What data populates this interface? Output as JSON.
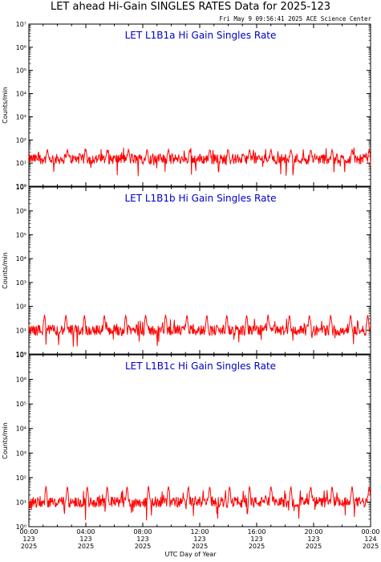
{
  "header": {
    "title": "LET ahead Hi-Gain SINGLES RATES Data for 2025-123",
    "timestamp": "Fri May  9 09:56:41 2025 ACE Science Center"
  },
  "colors": {
    "trace": "#ff0000",
    "panel_title": "#0000cc",
    "axis": "#000000"
  },
  "chart_data": [
    {
      "type": "line",
      "title": "LET L1B1a Hi Gain Singles Rate",
      "ylabel": "Counts/min",
      "yscale": "log",
      "ylim": [
        1,
        10000000
      ],
      "yticks": [
        "10⁰",
        "10¹",
        "10²",
        "10³",
        "10⁴",
        "10⁵",
        "10⁶",
        "10⁷"
      ],
      "xlim": [
        0,
        24
      ],
      "baseline": 15,
      "spike_hours": [
        1.3,
        2.7,
        4.0,
        5.5,
        7.0,
        8.3,
        9.8,
        11.3,
        12.7,
        14.0,
        15.5,
        17.0,
        18.4,
        19.8,
        21.3,
        22.7,
        23.9
      ],
      "spike_peak": 40
    },
    {
      "type": "line",
      "title": "LET L1B1b Hi Gain Singles Rate",
      "ylabel": "Counts/min",
      "yscale": "log",
      "ylim": [
        1,
        10000000
      ],
      "yticks": [
        "10⁰",
        "10¹",
        "10²",
        "10³",
        "10⁴",
        "10⁵",
        "10⁶",
        "10⁷"
      ],
      "xlim": [
        0,
        24
      ],
      "baseline": 10,
      "spike_hours": [
        1.1,
        2.6,
        3.9,
        5.3,
        6.8,
        8.2,
        9.6,
        11.1,
        12.5,
        13.9,
        15.3,
        16.8,
        18.3,
        19.7,
        21.2,
        22.6,
        23.8
      ],
      "spike_peak": 45
    },
    {
      "type": "line",
      "title": "LET L1B1c Hi Gain Singles Rate",
      "ylabel": "Counts/min",
      "yscale": "log",
      "ylim": [
        1,
        10000000
      ],
      "yticks": [
        "10⁰",
        "10¹",
        "10²",
        "10³",
        "10⁴",
        "10⁵",
        "10⁶",
        "10⁷"
      ],
      "xlim": [
        0,
        24
      ],
      "baseline": 10,
      "spike_hours": [
        1.2,
        2.7,
        4.1,
        5.5,
        6.9,
        8.4,
        9.8,
        11.2,
        12.7,
        14.1,
        15.5,
        17.0,
        18.4,
        19.8,
        21.3,
        22.7,
        23.9
      ],
      "spike_peak": 45
    }
  ],
  "xaxis": {
    "label": "UTC Day of Year",
    "ticks": [
      {
        "hour": 0,
        "time": "00:00",
        "doy": "123",
        "year": "2025"
      },
      {
        "hour": 4,
        "time": "04:00",
        "doy": "123",
        "year": "2025"
      },
      {
        "hour": 8,
        "time": "08:00",
        "doy": "123",
        "year": "2025"
      },
      {
        "hour": 12,
        "time": "12:00",
        "doy": "123",
        "year": "2025"
      },
      {
        "hour": 16,
        "time": "16:00",
        "doy": "123",
        "year": "2025"
      },
      {
        "hour": 20,
        "time": "20:00",
        "doy": "123",
        "year": "2025"
      },
      {
        "hour": 24,
        "time": "00:00",
        "doy": "124",
        "year": "2025"
      }
    ]
  }
}
